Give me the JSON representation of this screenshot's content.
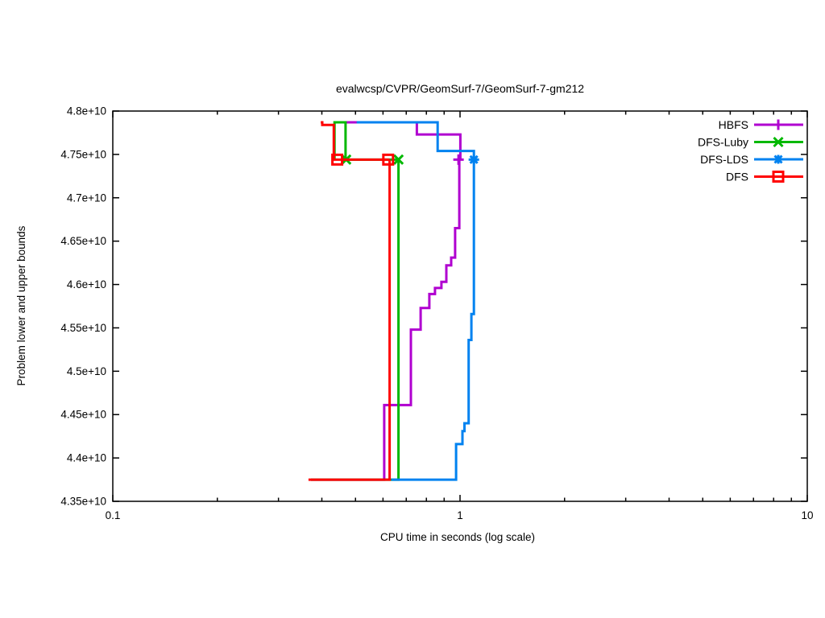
{
  "title": "evalwcsp/CVPR/GeomSurf-7/GeomSurf-7-gm212",
  "chart_data": {
    "type": "line",
    "subtype": "step-bounds-plot",
    "title": "evalwcsp/CVPR/GeomSurf-7/GeomSurf-7-gm212",
    "xlabel": "CPU time in seconds (log scale)",
    "ylabel": "Problem lower and upper bounds",
    "x_scale": "log",
    "grid": "off",
    "xlim": [
      0.1,
      10
    ],
    "ylim_e10": [
      4.35,
      4.8
    ],
    "x_ticks": [
      {
        "v": 0.1,
        "label": "0.1"
      },
      {
        "v": 1,
        "label": "1"
      },
      {
        "v": 10,
        "label": "10"
      }
    ],
    "x_minor_ticks": [
      0.2,
      0.3,
      0.4,
      0.5,
      0.6,
      0.7,
      0.8,
      0.9,
      2,
      3,
      4,
      5,
      6,
      7,
      8,
      9
    ],
    "y_ticks": [
      {
        "v": 4.8,
        "label": "4.8e+10"
      },
      {
        "v": 4.75,
        "label": "4.75e+10"
      },
      {
        "v": 4.7,
        "label": "4.7e+10"
      },
      {
        "v": 4.65,
        "label": "4.65e+10"
      },
      {
        "v": 4.6,
        "label": "4.6e+10"
      },
      {
        "v": 4.55,
        "label": "4.55e+10"
      },
      {
        "v": 4.5,
        "label": "4.5e+10"
      },
      {
        "v": 4.45,
        "label": "4.45e+10"
      },
      {
        "v": 4.4,
        "label": "4.4e+10"
      },
      {
        "v": 4.35,
        "label": "4.35e+10"
      }
    ],
    "value_unit": "e+10",
    "optimum_e10": 4.744,
    "legend": {
      "position": "top-right",
      "order": [
        "HBFS",
        "DFS-Luby",
        "DFS-LDS",
        "DFS"
      ]
    },
    "series": [
      {
        "name": "HBFS",
        "color": "#b000d0",
        "marker": "plus",
        "upper_bound": [
          [
            0.447,
            4.787
          ],
          [
            0.751,
            4.787
          ],
          [
            0.751,
            4.773
          ],
          [
            1.002,
            4.773
          ],
          [
            1.002,
            4.744
          ]
        ],
        "lower_bound": [
          [
            0.372,
            4.375
          ],
          [
            0.605,
            4.375
          ],
          [
            0.605,
            4.461
          ],
          [
            0.722,
            4.461
          ],
          [
            0.722,
            4.548
          ],
          [
            0.77,
            4.548
          ],
          [
            0.77,
            4.573
          ],
          [
            0.816,
            4.573
          ],
          [
            0.816,
            4.589
          ],
          [
            0.847,
            4.589
          ],
          [
            0.847,
            4.596
          ],
          [
            0.884,
            4.596
          ],
          [
            0.884,
            4.603
          ],
          [
            0.913,
            4.603
          ],
          [
            0.913,
            4.622
          ],
          [
            0.943,
            4.622
          ],
          [
            0.943,
            4.631
          ],
          [
            0.968,
            4.631
          ],
          [
            0.968,
            4.665
          ],
          [
            0.995,
            4.665
          ],
          [
            0.995,
            4.744
          ]
        ],
        "marker_points": [
          [
            0.99,
            4.744
          ]
        ]
      },
      {
        "name": "DFS-Luby",
        "color": "#00b800",
        "marker": "cross",
        "upper_bound": [
          [
            0.435,
            4.744
          ],
          [
            0.435,
            4.787
          ],
          [
            0.468,
            4.787
          ],
          [
            0.468,
            4.744
          ],
          [
            0.665,
            4.744
          ]
        ],
        "lower_bound": [
          [
            0.372,
            4.375
          ],
          [
            0.665,
            4.375
          ],
          [
            0.665,
            4.744
          ]
        ],
        "marker_points": [
          [
            0.47,
            4.744
          ],
          [
            0.665,
            4.744
          ]
        ]
      },
      {
        "name": "DFS-LDS",
        "color": "#0082f0",
        "marker": "star",
        "upper_bound": [
          [
            0.504,
            4.787
          ],
          [
            0.862,
            4.787
          ],
          [
            0.862,
            4.754
          ],
          [
            1.096,
            4.754
          ],
          [
            1.096,
            4.744
          ]
        ],
        "lower_bound": [
          [
            0.634,
            4.375
          ],
          [
            0.974,
            4.375
          ],
          [
            0.974,
            4.416
          ],
          [
            1.016,
            4.416
          ],
          [
            1.016,
            4.431
          ],
          [
            1.03,
            4.431
          ],
          [
            1.03,
            4.44
          ],
          [
            1.059,
            4.44
          ],
          [
            1.059,
            4.536
          ],
          [
            1.078,
            4.536
          ],
          [
            1.078,
            4.566
          ],
          [
            1.096,
            4.566
          ],
          [
            1.096,
            4.744
          ]
        ],
        "marker_points": [
          [
            1.096,
            4.744
          ]
        ]
      },
      {
        "name": "DFS",
        "color": "#ff0000",
        "marker": "square",
        "upper_bound": [
          [
            0.397,
            4.787
          ],
          [
            0.401,
            4.787
          ],
          [
            0.401,
            4.784
          ],
          [
            0.433,
            4.784
          ],
          [
            0.433,
            4.744
          ],
          [
            0.627,
            4.744
          ]
        ],
        "lower_bound": [
          [
            0.366,
            4.375
          ],
          [
            0.627,
            4.375
          ],
          [
            0.627,
            4.744
          ]
        ],
        "marker_points": [
          [
            0.443,
            4.744
          ],
          [
            0.621,
            4.744
          ]
        ]
      }
    ]
  }
}
